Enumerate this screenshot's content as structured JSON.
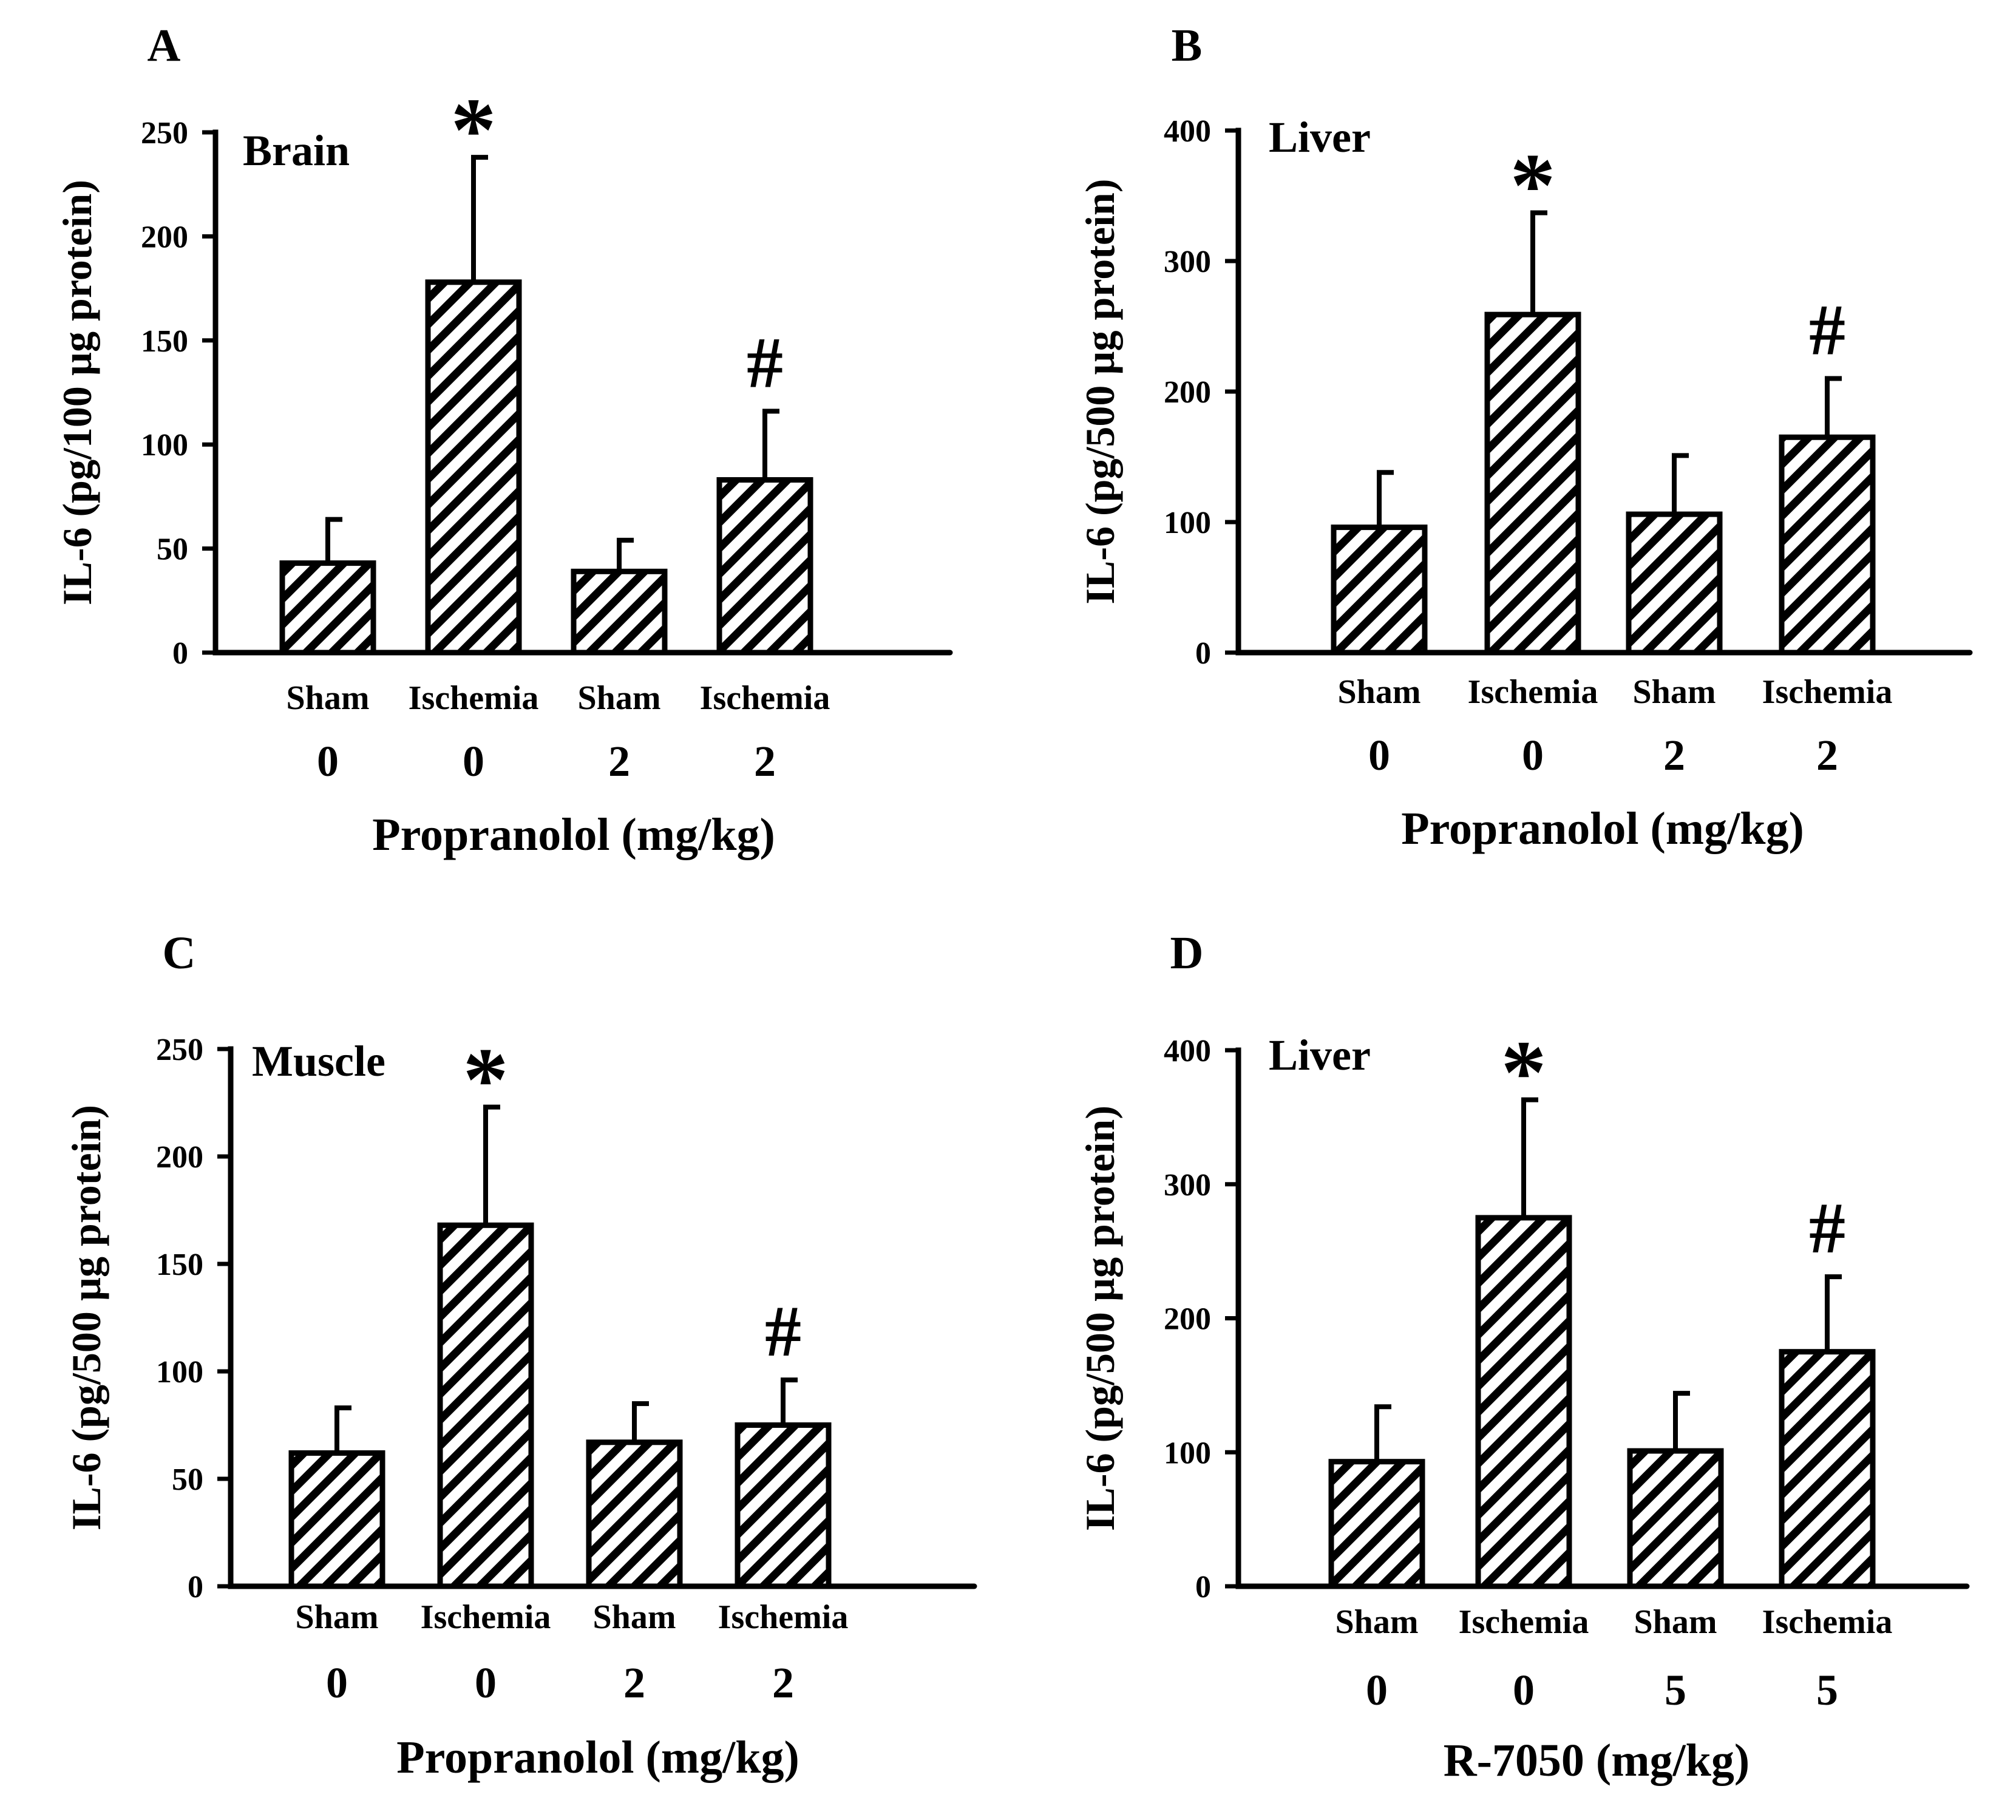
{
  "chart_data": [
    {
      "type": "bar",
      "panel": "A",
      "tissue": "Brain",
      "ylabel": "IL-6 (pg/100 µg protein)",
      "xlabel": "Propranolol (mg/kg)",
      "ylim": [
        0,
        250
      ],
      "yticks": [
        "0",
        "50",
        "100",
        "150",
        "200",
        "250"
      ],
      "categories": [
        "Sham",
        "Ischemia",
        "Sham",
        "Ischemia"
      ],
      "doses": [
        "0",
        "0",
        "2",
        "2"
      ],
      "values": [
        43,
        178,
        39,
        83
      ],
      "errors": [
        21,
        60,
        15,
        33
      ],
      "significance": [
        "",
        "*",
        "",
        "#"
      ]
    },
    {
      "type": "bar",
      "panel": "B",
      "tissue": "Liver",
      "ylabel": "IL-6 (pg/500 µg protein)",
      "xlabel": "Propranolol (mg/kg)",
      "ylim": [
        0,
        400
      ],
      "yticks": [
        "0",
        "100",
        "200",
        "300",
        "400"
      ],
      "categories": [
        "Sham",
        "Ischemia",
        "Sham",
        "Ischemia"
      ],
      "doses": [
        "0",
        "0",
        "2",
        "2"
      ],
      "values": [
        96,
        259,
        106,
        165
      ],
      "errors": [
        42,
        78,
        45,
        45
      ],
      "significance": [
        "",
        "*",
        "",
        "#"
      ]
    },
    {
      "type": "bar",
      "panel": "C",
      "tissue": "Muscle",
      "ylabel": "IL-6 (pg/500 µg protein)",
      "xlabel": "Propranolol (mg/kg)",
      "ylim": [
        0,
        250
      ],
      "yticks": [
        "0",
        "50",
        "100",
        "150",
        "200",
        "250"
      ],
      "categories": [
        "Sham",
        "Ischemia",
        "Sham",
        "Ischemia"
      ],
      "doses": [
        "0",
        "0",
        "2",
        "2"
      ],
      "values": [
        62,
        168,
        67,
        75
      ],
      "errors": [
        21,
        55,
        18,
        21
      ],
      "significance": [
        "",
        "*",
        "",
        "#"
      ]
    },
    {
      "type": "bar",
      "panel": "D",
      "tissue": "Liver",
      "ylabel": "IL-6 (pg/500 µg protein)",
      "xlabel": "R-7050 (mg/kg)",
      "ylim": [
        0,
        400
      ],
      "yticks": [
        "0",
        "100",
        "200",
        "300",
        "400"
      ],
      "categories": [
        "Sham",
        "Ischemia",
        "Sham",
        "Ischemia"
      ],
      "doses": [
        "0",
        "0",
        "5",
        "5"
      ],
      "values": [
        93,
        275,
        101,
        175
      ],
      "errors": [
        41,
        88,
        43,
        56
      ],
      "significance": [
        "",
        "*",
        "",
        "#"
      ]
    }
  ]
}
